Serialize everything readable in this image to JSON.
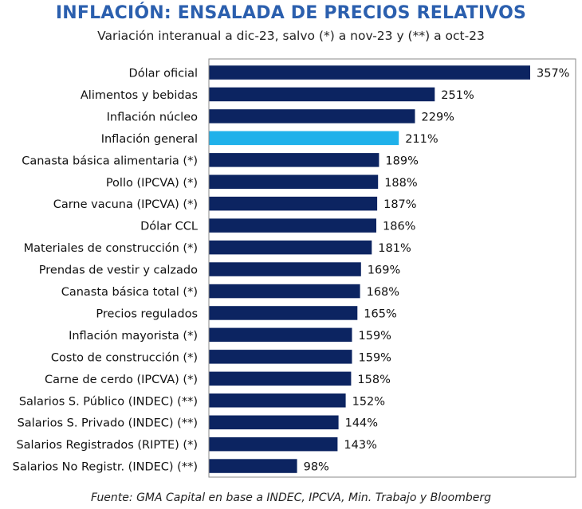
{
  "title": "INFLACIÓN: ENSALADA DE PRECIOS RELATIVOS",
  "subtitle": "Variación interanual a dic-23, salvo (*) a nov-23 y (**) a oct-23",
  "source": "Fuente: GMA Capital en base a INDEC, IPCVA, Min. Trabajo y Bloomberg",
  "colors": {
    "bar": "#0C2461",
    "highlight": "#1FB1EA",
    "frame": "#888888"
  },
  "chart_data": {
    "type": "bar",
    "orientation": "horizontal",
    "title": "INFLACIÓN: ENSALADA DE PRECIOS RELATIVOS",
    "subtitle": "Variación interanual a dic-23, salvo (*) a nov-23 y (**) a oct-23",
    "highlight_category": "Inflación general",
    "value_suffix": "%",
    "xlim": [
      0,
      357
    ],
    "grid": false,
    "categories": [
      "Dólar oficial",
      "Alimentos y bebidas",
      "Inflación núcleo",
      "Inflación general",
      "Canasta básica alimentaria (*)",
      "Pollo (IPCVA) (*)",
      "Carne vacuna (IPCVA) (*)",
      "Dólar CCL",
      "Materiales de construcción (*)",
      "Prendas de vestir y calzado",
      "Canasta básica total (*)",
      "Precios regulados",
      "Inflación mayorista (*)",
      "Costo de construcción (*)",
      "Carne de cerdo (IPCVA) (*)",
      "Salarios S. Público (INDEC) (**)",
      "Salarios S. Privado (INDEC) (**)",
      "Salarios Registrados (RIPTE) (*)",
      "Salarios No Registr. (INDEC) (**)"
    ],
    "values": [
      357,
      251,
      229,
      211,
      189,
      188,
      187,
      186,
      181,
      169,
      168,
      165,
      159,
      159,
      158,
      152,
      144,
      143,
      98
    ],
    "labels": [
      "357%",
      "251%",
      "229%",
      "211%",
      "189%",
      "188%",
      "187%",
      "186%",
      "181%",
      "169%",
      "168%",
      "165%",
      "159%",
      "159%",
      "158%",
      "152%",
      "144%",
      "143%",
      "98%"
    ]
  }
}
